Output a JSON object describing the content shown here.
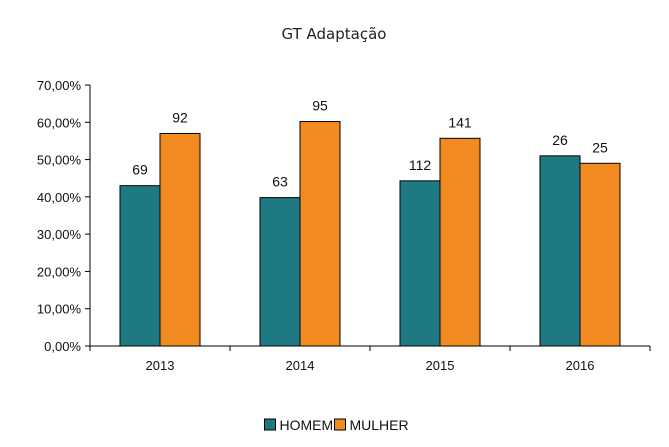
{
  "chart_data": {
    "type": "bar",
    "title": "GT Adaptação",
    "categories": [
      "2013",
      "2014",
      "2015",
      "2016"
    ],
    "series": [
      {
        "name": "HOMEM",
        "color": "#1E7A82",
        "values": [
          43.0,
          39.8,
          44.3,
          51.0
        ],
        "labels": [
          "69",
          "63",
          "112",
          "26"
        ]
      },
      {
        "name": "MULHER",
        "color": "#F28C22",
        "values": [
          57.0,
          60.2,
          55.7,
          49.0
        ],
        "labels": [
          "92",
          "95",
          "141",
          "25"
        ]
      }
    ],
    "ylim": [
      0,
      70
    ],
    "y_ticks": [
      "0,00%",
      "10,00%",
      "20,00%",
      "30,00%",
      "40,00%",
      "50,00%",
      "60,00%",
      "70,00%"
    ],
    "y_tick_values": [
      0,
      10,
      20,
      30,
      40,
      50,
      60,
      70
    ],
    "grid": false,
    "legend_position": "bottom"
  }
}
